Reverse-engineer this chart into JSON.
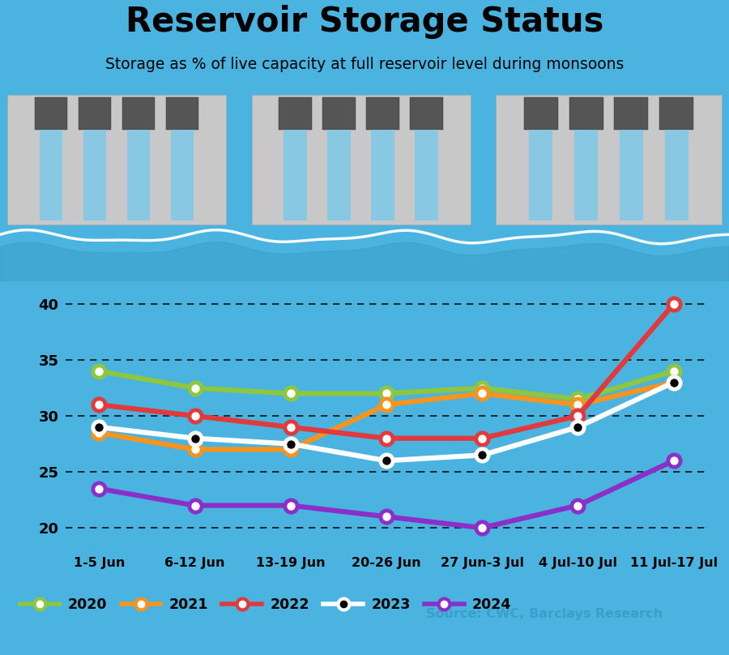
{
  "title": "Reservoir Storage Status",
  "subtitle": "Storage as % of live capacity at full reservoir level during monsoons",
  "x_labels": [
    "1-5 Jun",
    "6-12 Jun",
    "13-19 Jun",
    "20-26 Jun",
    "27 Jun-3 Jul",
    "4 Jul-10 Jul",
    "11 Jul-17 Jul"
  ],
  "series": {
    "2020": {
      "values": [
        34.0,
        32.5,
        32.0,
        32.0,
        32.5,
        31.5,
        34.0
      ],
      "color": "#8dc63f",
      "marker_fc": "white",
      "linewidth": 4.5
    },
    "2021": {
      "values": [
        28.5,
        27.0,
        27.0,
        31.0,
        32.0,
        31.0,
        33.0
      ],
      "color": "#f7941d",
      "marker_fc": "white",
      "linewidth": 4.5
    },
    "2022": {
      "values": [
        31.0,
        30.0,
        29.0,
        28.0,
        28.0,
        30.0,
        40.0
      ],
      "color": "#e03a3c",
      "marker_fc": "white",
      "linewidth": 4.5
    },
    "2023": {
      "values": [
        29.0,
        28.0,
        27.5,
        26.0,
        26.5,
        29.0,
        33.0
      ],
      "color": "#ffffff",
      "marker_fc": "black",
      "linewidth": 4.5
    },
    "2024": {
      "values": [
        23.5,
        22.0,
        22.0,
        21.0,
        20.0,
        22.0,
        26.0
      ],
      "color": "#8b2fc9",
      "marker_fc": "white",
      "linewidth": 4.5
    }
  },
  "ylim": [
    18,
    42
  ],
  "yticks": [
    20,
    25,
    30,
    35,
    40
  ],
  "bg_color": "#4ab3e0",
  "grid_color": "#111111",
  "source_text": "Source: CWC, Barclays Research",
  "legend_order": [
    "2020",
    "2021",
    "2022",
    "2023",
    "2024"
  ],
  "dam_color": "#c8c8c8",
  "dam_dark": "#aaaaaa",
  "gate_color": "#555555",
  "water_color": "#7ec8e8",
  "wave_color": "#ffffff",
  "legend_bg": "#ffffff"
}
